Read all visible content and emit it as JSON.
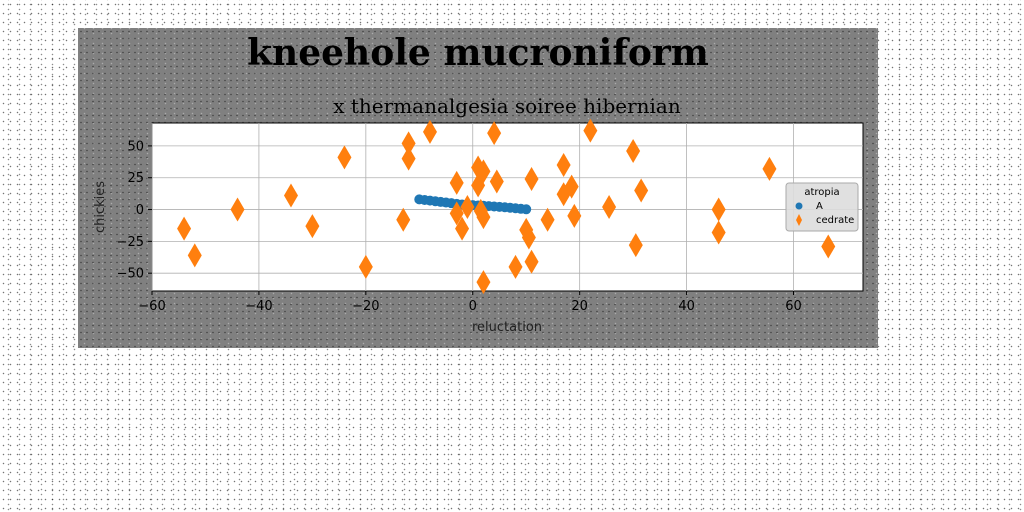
{
  "chart_data": {
    "type": "scatter",
    "title": "kneehole mucroniform",
    "subtitle": "x thermanalgesia soiree hibernian",
    "xlabel": "reluctation",
    "ylabel": "chickies",
    "xlim": [
      -60,
      73
    ],
    "ylim": [
      -64,
      68
    ],
    "xticks": [
      -60,
      -40,
      -20,
      0,
      20,
      40,
      60
    ],
    "yticks": [
      -50,
      -25,
      0,
      25,
      50
    ],
    "xtick_labels": [
      "−60",
      "−40",
      "−20",
      "0",
      "20",
      "40",
      "60"
    ],
    "ytick_labels": [
      "−50",
      "−25",
      "0",
      "25",
      "50"
    ],
    "grid": true,
    "legend": {
      "title": "atropia",
      "position": "center-right"
    },
    "series": [
      {
        "name": "A",
        "marker": "circle",
        "color": "#1f77b4",
        "x": [
          -10,
          -9,
          -8,
          -7,
          -6,
          -5,
          -4,
          -3,
          -2,
          -1,
          0,
          1,
          2,
          3,
          4,
          5,
          6,
          7,
          8,
          9,
          10
        ],
        "y": [
          8,
          7.5,
          7,
          6.5,
          6,
          5.5,
          5,
          4.5,
          4,
          3.8,
          3.5,
          3.2,
          3,
          2.7,
          2.4,
          2.1,
          1.8,
          1.4,
          1,
          0.6,
          0.2
        ]
      },
      {
        "name": "cedrate",
        "marker": "diamond",
        "color": "#ff7f0e",
        "x": [
          -54,
          -52,
          -44,
          -34,
          -30,
          -24,
          -20,
          -13,
          -12,
          -12,
          -8,
          -3,
          -3,
          -2,
          -1,
          1,
          1,
          1.5,
          2,
          2,
          2,
          4,
          4.5,
          8,
          10,
          10.5,
          11,
          11,
          14,
          17,
          17,
          18.5,
          19,
          22,
          25.5,
          30,
          30.5,
          31.5,
          46,
          46,
          55.5,
          66.5
        ],
        "y": [
          -15,
          -36,
          0,
          11,
          -13,
          41,
          -45,
          -8,
          40,
          52,
          61,
          21,
          -3,
          -15,
          2,
          19,
          33,
          -1,
          30,
          -6,
          -57,
          60,
          22,
          -45,
          -16,
          -22,
          -41,
          24,
          -8,
          12,
          35,
          18,
          -5,
          62,
          2,
          46,
          -28,
          15,
          0,
          -18,
          32,
          -29
        ]
      }
    ]
  }
}
